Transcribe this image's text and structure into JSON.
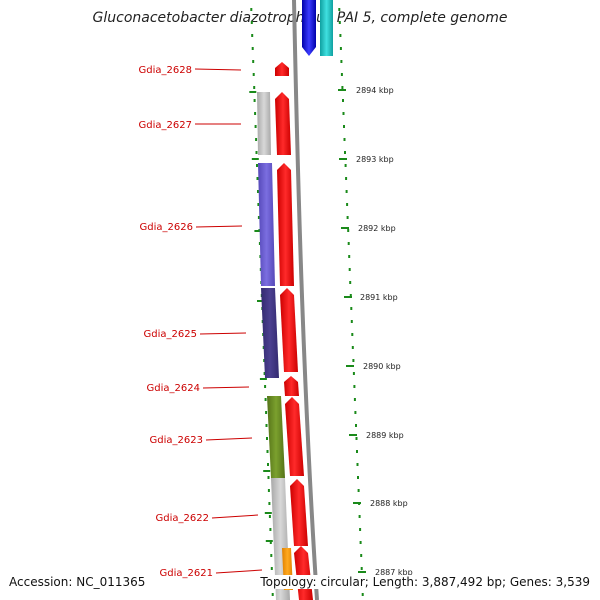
{
  "title": "Gluconacetobacter diazotrophicus PAI 5, complete genome",
  "genes": [
    {
      "name": "Gdia_2628",
      "color": "#ff0000"
    },
    {
      "name": "Gdia_2627",
      "color": "#ff0000"
    },
    {
      "name": "Gdia_2626",
      "color": "#ff0000"
    },
    {
      "name": "Gdia_2625",
      "color": "#ff0000"
    },
    {
      "name": "Gdia_2624",
      "color": "#ff0000"
    },
    {
      "name": "Gdia_2623",
      "color": "#ff0000"
    },
    {
      "name": "Gdia_2622",
      "color": "#ff0000"
    },
    {
      "name": "Gdia_2621",
      "color": "#ff0000"
    }
  ],
  "scale": [
    "2894 kbp",
    "2893 kbp",
    "2892 kbp",
    "2891 kbp",
    "2890 kbp",
    "2889 kbp",
    "2888 kbp",
    "2887 kbp"
  ],
  "footer": {
    "accession": "Accession: NC_011365",
    "topology": "Topology: circular; Length: 3,887,492 bp; Genes: 3,539"
  },
  "colors": {
    "cds": "#ff0000",
    "reverse_cds": "#0000ee",
    "cyan_feature": "#19c8c8",
    "tick": "#1a8a1a",
    "grey_feature": "#bdbdbd",
    "blue_feature": "#6a5acd",
    "dark_blue_feature": "#483d8b",
    "green_feature": "#6b8e23",
    "orange_feature": "#ff9900",
    "backbone": "#888888"
  }
}
